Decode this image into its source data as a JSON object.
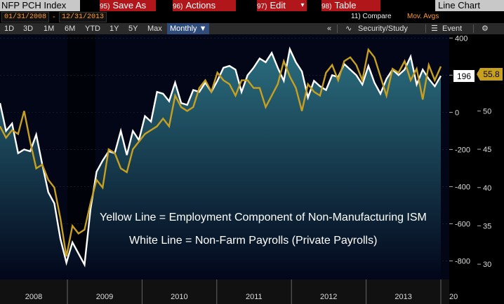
{
  "header": {
    "ticker": "NFP PCH Index",
    "menu": [
      {
        "num": "95)",
        "label": "Save As"
      },
      {
        "num": "96)",
        "label": "Actions"
      },
      {
        "num": "97)",
        "label": "Edit"
      },
      {
        "num": "98)",
        "label": "Table"
      }
    ],
    "chart_type_label": "Line Chart"
  },
  "dates": {
    "start": "01/31/2008",
    "sep": "-",
    "end": "12/31/2013"
  },
  "options": {
    "compare": "11) Compare",
    "mov_avgs": "Mov. Avgs"
  },
  "toolbar": {
    "ranges": [
      "1D",
      "3D",
      "1M",
      "6M",
      "YTD",
      "1Y",
      "5Y",
      "Max"
    ],
    "period": "Monthly ▼",
    "collapse": "«",
    "security": "Security/Study",
    "event": "Event",
    "gear": "⚙"
  },
  "chart_data": {
    "type": "line",
    "annotations": [
      "Yellow Line = Employment Component of Non-Manufacturing ISM",
      "White Line = Non-Farm Payrolls (Private Payrolls)"
    ],
    "x_labels": [
      "2008",
      "2009",
      "2010",
      "2011",
      "2012",
      "2013",
      "20"
    ],
    "left_axis": {
      "ticks": [
        400,
        200,
        0,
        -200,
        -400,
        -600,
        -800
      ],
      "ylim": [
        -900,
        420
      ]
    },
    "right_axis": {
      "ticks": [
        55,
        50,
        45,
        40,
        35,
        30
      ],
      "ylim": [
        28,
        60
      ]
    },
    "last_values": {
      "white": "196",
      "yellow": "55.8"
    },
    "colors": {
      "white": "#ffffff",
      "yellow": "#c8a020",
      "area_top": "#2b6f80",
      "area_bottom": "#02061a"
    },
    "series": [
      {
        "axis": "left",
        "values": [
          50,
          -100,
          -60,
          -220,
          -200,
          -210,
          -120,
          -280,
          -430,
          -490,
          -680,
          -810,
          -700,
          -760,
          -820,
          -520,
          -320,
          -260,
          -210,
          -220,
          -100,
          -230,
          -100,
          -150,
          -20,
          -50,
          110,
          100,
          60,
          160,
          50,
          40,
          120,
          110,
          160,
          110,
          170,
          240,
          250,
          230,
          110,
          200,
          240,
          290,
          270,
          320,
          240,
          170,
          340,
          270,
          220,
          80,
          170,
          140,
          120,
          200,
          190,
          260,
          230,
          200,
          150,
          250,
          160,
          100,
          180,
          230,
          200,
          230,
          300,
          150,
          230,
          180,
          140,
          196
        ]
      },
      {
        "axis": "right",
        "values": [
          48,
          46.5,
          47.5,
          47,
          50,
          46,
          42.5,
          43,
          41,
          40,
          36,
          31,
          35,
          34,
          34.5,
          38,
          41,
          40,
          45,
          44.5,
          42.5,
          42,
          45,
          46,
          47,
          47.5,
          48,
          49,
          48,
          52,
          50.5,
          50,
          50.5,
          53,
          54,
          52.5,
          55,
          54,
          53.5,
          52,
          54,
          54,
          53,
          53,
          50.5,
          52,
          53.5,
          56.5,
          54.5,
          53,
          50,
          53.5,
          52.5,
          52,
          55,
          56,
          54,
          56.5,
          57,
          56,
          54,
          58,
          57,
          54.5,
          52,
          55.5,
          55,
          56.5,
          54,
          55.5,
          51.5,
          56,
          54,
          55.8
        ]
      }
    ]
  }
}
